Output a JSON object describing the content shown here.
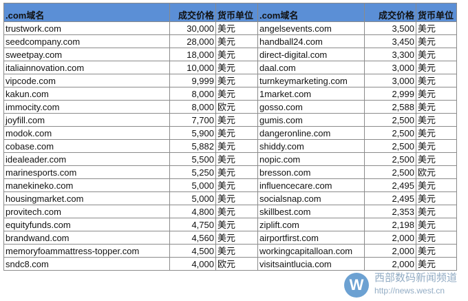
{
  "headers": [
    ".com域名",
    "成交价格",
    "货币单位",
    ".com域名",
    "成交价格",
    "货币单位"
  ],
  "colors": {
    "header_bg": "#5b8fd6"
  },
  "rows": [
    [
      "trustwork.com",
      "30,000",
      "美元",
      "angelsevents.com",
      "3,500",
      "美元"
    ],
    [
      "seedcompany.com",
      "28,000",
      "美元",
      "handball24.com",
      "3,450",
      "美元"
    ],
    [
      "sweetpay.com",
      "18,000",
      "美元",
      "direct-digital.com",
      "3,300",
      "美元"
    ],
    [
      "italiainnovation.com",
      "10,000",
      "美元",
      "daal.com",
      "3,000",
      "美元"
    ],
    [
      "vipcode.com",
      "9,999",
      "美元",
      "turnkeymarketing.com",
      "3,000",
      "美元"
    ],
    [
      "kakun.com",
      "8,000",
      "美元",
      "1market.com",
      "2,999",
      "美元"
    ],
    [
      "immocity.com",
      "8,000",
      "欧元",
      "gosso.com",
      "2,588",
      "美元"
    ],
    [
      "joyfill.com",
      "7,700",
      "美元",
      "gumis.com",
      "2,500",
      "美元"
    ],
    [
      "modok.com",
      "5,900",
      "美元",
      "dangeronline.com",
      "2,500",
      "美元"
    ],
    [
      "cobase.com",
      "5,882",
      "美元",
      "shiddy.com",
      "2,500",
      "美元"
    ],
    [
      "idealeader.com",
      "5,500",
      "美元",
      "nopic.com",
      "2,500",
      "美元"
    ],
    [
      "marinesports.com",
      "5,250",
      "美元",
      "bresson.com",
      "2,500",
      "欧元"
    ],
    [
      "manekineko.com",
      "5,000",
      "美元",
      "influencecare.com",
      "2,495",
      "美元"
    ],
    [
      "housingmarket.com",
      "5,000",
      "美元",
      "socialsnap.com",
      "2,495",
      "美元"
    ],
    [
      "provitech.com",
      "4,800",
      "美元",
      "skillbest.com",
      "2,353",
      "美元"
    ],
    [
      "equityfunds.com",
      "4,750",
      "美元",
      "ziplift.com",
      "2,198",
      "美元"
    ],
    [
      "brandwand.com",
      "4,560",
      "美元",
      "airportfirst.com",
      "2,000",
      "美元"
    ],
    [
      "memoryfoammattress-topper.com",
      "4,500",
      "美元",
      "workingcapitalloan.com",
      "2,000",
      "美元"
    ],
    [
      "sndc8.com",
      "4,000",
      "欧元",
      "visitsaintlucia.com",
      "2,000",
      "美元"
    ]
  ],
  "watermark": {
    "logo": "W",
    "title": "西部数码新闻频道",
    "url": "http://news.west.cn"
  }
}
